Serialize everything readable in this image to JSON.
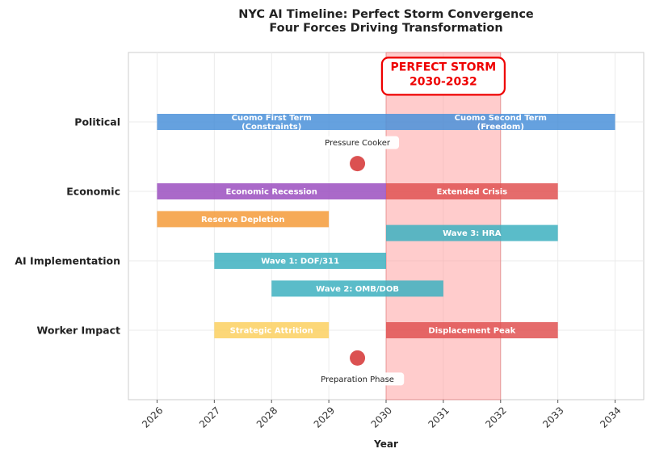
{
  "chart_data": {
    "type": "timeline",
    "title": "NYC AI Timeline: Perfect Storm Convergence",
    "subtitle": "Four Forces Driving Transformation",
    "xlabel": "Year",
    "ylabel": "",
    "xlim": [
      2025.5,
      2034.5
    ],
    "xticks": [
      2026,
      2027,
      2028,
      2029,
      2030,
      2031,
      2032,
      2033,
      2034
    ],
    "grid": true,
    "categories": [
      {
        "label": "Political",
        "y": 4
      },
      {
        "label": "Economic",
        "y": 3
      },
      {
        "label": "AI Implementation",
        "y": 2
      },
      {
        "label": "Worker Impact",
        "y": 1
      }
    ],
    "ylim": [
      0,
      5
    ],
    "bars": [
      {
        "label": "Cuomo First Term\n(Constraints)",
        "start": 2026,
        "end": 2030,
        "y": 4,
        "color": "#4a90d9"
      },
      {
        "label": "Cuomo Second Term\n(Freedom)",
        "start": 2030,
        "end": 2034,
        "y": 4,
        "color": "#4a90d9"
      },
      {
        "label": "Economic Recession",
        "start": 2026,
        "end": 2030,
        "y": 3,
        "color": "#9b4fbf"
      },
      {
        "label": "Extended Crisis",
        "start": 2030,
        "end": 2033,
        "y": 3,
        "color": "#e05252"
      },
      {
        "label": "Reserve Depletion",
        "start": 2026,
        "end": 2029,
        "y": 2.6,
        "color": "#f59b3a"
      },
      {
        "label": "Wave 3: HRA",
        "start": 2030,
        "end": 2033,
        "y": 2.4,
        "color": "#3db0c0"
      },
      {
        "label": "Wave 1: DOF/311",
        "start": 2027,
        "end": 2030,
        "y": 2,
        "color": "#3db0c0"
      },
      {
        "label": "Wave 2: OMB/DOB",
        "start": 2028,
        "end": 2031,
        "y": 1.6,
        "color": "#3db0c0"
      },
      {
        "label": "Strategic Attrition",
        "start": 2027,
        "end": 2029,
        "y": 1,
        "color": "#fcd060"
      },
      {
        "label": "Displacement Peak",
        "start": 2030,
        "end": 2033,
        "y": 1,
        "color": "#e05252"
      }
    ],
    "highlight": {
      "start": 2030,
      "end": 2032,
      "label": "PERFECT STORM\n2030-2032",
      "color": "#ff9999"
    },
    "markers": [
      {
        "x": 2029.5,
        "y": 3.4,
        "annotation": "Pressure Cooker",
        "color": "#d94848"
      },
      {
        "x": 2029.5,
        "y": 0.6,
        "annotation": "Preparation Phase",
        "color": "#d94848"
      }
    ]
  }
}
